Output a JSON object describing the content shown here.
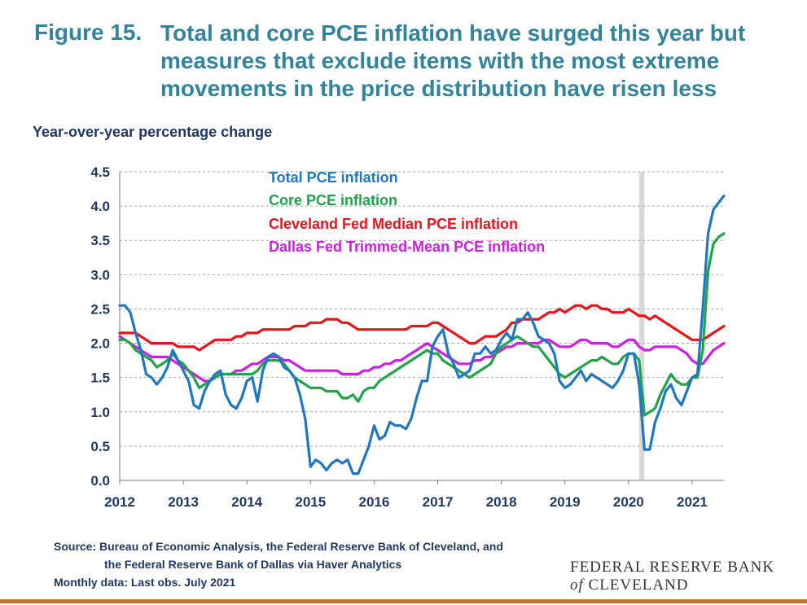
{
  "figure": {
    "number": "Figure 15.",
    "title_lines": [
      "Total and core PCE inflation have surged this year but",
      "measures that exclude items with the most extreme",
      "movements in the price distribution have risen less"
    ]
  },
  "axis_title": "Year-over-year percentage change",
  "source_lines": [
    "Source: Bureau of Economic Analysis, the Federal Reserve Bank of Cleveland, and",
    "the Federal Reserve Bank of Dallas via Haver Analytics",
    "Monthly data: Last obs. July 2021"
  ],
  "logo": {
    "line1": "FEDERAL RESERVE BANK",
    "of": "of",
    "line2": "CLEVELAND"
  },
  "colors": {
    "title": "#31849b",
    "axis_text": "#1f3864",
    "recession": "#d9d9d9",
    "rule": "#b8762f"
  },
  "chart_data": {
    "type": "line",
    "xlabel": "",
    "ylabel": "Year-over-year percentage change",
    "x_ticks": [
      "2012",
      "2013",
      "2014",
      "2015",
      "2016",
      "2017",
      "2018",
      "2019",
      "2020",
      "2021"
    ],
    "x_range": [
      "2012-01",
      "2021-07"
    ],
    "ylim": [
      0,
      4.5
    ],
    "y_ticks": [
      "0.0",
      "0.5",
      "1.0",
      "1.5",
      "2.0",
      "2.5",
      "3.0",
      "3.5",
      "4.0",
      "4.5"
    ],
    "grid": "horizontal dashed",
    "legend": "top, inside plot",
    "shaded_periods": [
      {
        "start": "2020-03",
        "end": "2020-04"
      }
    ],
    "series": [
      {
        "name": "Total PCE inflation",
        "color": "#1f77c4",
        "start": "2012-01",
        "values": [
          2.55,
          2.55,
          2.45,
          2.15,
          1.9,
          1.55,
          1.5,
          1.4,
          1.5,
          1.65,
          1.9,
          1.75,
          1.6,
          1.45,
          1.1,
          1.05,
          1.3,
          1.45,
          1.55,
          1.6,
          1.25,
          1.1,
          1.05,
          1.2,
          1.45,
          1.5,
          1.15,
          1.6,
          1.8,
          1.85,
          1.8,
          1.65,
          1.6,
          1.5,
          1.25,
          0.9,
          0.2,
          0.3,
          0.25,
          0.15,
          0.25,
          0.3,
          0.25,
          0.3,
          0.1,
          0.1,
          0.3,
          0.5,
          0.8,
          0.6,
          0.65,
          0.85,
          0.8,
          0.8,
          0.75,
          0.9,
          1.2,
          1.45,
          1.45,
          1.95,
          2.1,
          2.2,
          1.85,
          1.7,
          1.5,
          1.55,
          1.6,
          1.85,
          1.85,
          1.95,
          1.85,
          1.9,
          2.05,
          2.15,
          2.05,
          2.35,
          2.35,
          2.45,
          2.3,
          2.1,
          2.05,
          2.0,
          1.85,
          1.45,
          1.35,
          1.4,
          1.5,
          1.6,
          1.45,
          1.55,
          1.5,
          1.45,
          1.4,
          1.35,
          1.45,
          1.6,
          1.85,
          1.85,
          1.4,
          0.45,
          0.45,
          0.85,
          1.05,
          1.3,
          1.4,
          1.2,
          1.1,
          1.3,
          1.5,
          1.55,
          2.5,
          3.6,
          3.95,
          4.05,
          4.15
        ]
      },
      {
        "name": "Core PCE inflation",
        "color": "#21a34a",
        "start": "2012-01",
        "values": [
          2.05,
          2.05,
          2.0,
          1.9,
          1.85,
          1.8,
          1.75,
          1.65,
          1.7,
          1.75,
          1.85,
          1.75,
          1.7,
          1.6,
          1.5,
          1.35,
          1.4,
          1.45,
          1.5,
          1.55,
          1.55,
          1.55,
          1.55,
          1.55,
          1.55,
          1.55,
          1.6,
          1.7,
          1.75,
          1.75,
          1.75,
          1.7,
          1.6,
          1.5,
          1.45,
          1.4,
          1.35,
          1.35,
          1.35,
          1.3,
          1.3,
          1.3,
          1.2,
          1.2,
          1.25,
          1.15,
          1.3,
          1.35,
          1.35,
          1.45,
          1.5,
          1.55,
          1.6,
          1.65,
          1.7,
          1.75,
          1.8,
          1.85,
          1.9,
          1.85,
          1.85,
          1.75,
          1.7,
          1.65,
          1.6,
          1.55,
          1.5,
          1.55,
          1.6,
          1.65,
          1.7,
          1.85,
          1.95,
          2.0,
          2.05,
          2.1,
          2.05,
          2.0,
          1.95,
          1.95,
          1.85,
          1.75,
          1.65,
          1.55,
          1.5,
          1.55,
          1.6,
          1.65,
          1.7,
          1.75,
          1.75,
          1.8,
          1.75,
          1.7,
          1.7,
          1.8,
          1.85,
          1.85,
          1.75,
          0.95,
          1.0,
          1.05,
          1.25,
          1.4,
          1.55,
          1.45,
          1.4,
          1.4,
          1.5,
          1.5,
          1.9,
          3.05,
          3.45,
          3.55,
          3.6
        ]
      },
      {
        "name": "Cleveland Fed Median PCE inflation",
        "color": "#e8131b",
        "start": "2012-01",
        "values": [
          2.15,
          2.15,
          2.15,
          2.15,
          2.1,
          2.05,
          2.0,
          2.0,
          2.0,
          2.0,
          2.0,
          1.95,
          1.95,
          1.95,
          1.95,
          1.9,
          1.95,
          2.0,
          2.05,
          2.05,
          2.05,
          2.05,
          2.1,
          2.1,
          2.15,
          2.15,
          2.15,
          2.2,
          2.2,
          2.2,
          2.2,
          2.2,
          2.2,
          2.25,
          2.25,
          2.25,
          2.3,
          2.3,
          2.3,
          2.35,
          2.35,
          2.35,
          2.3,
          2.3,
          2.25,
          2.2,
          2.2,
          2.2,
          2.2,
          2.2,
          2.2,
          2.2,
          2.2,
          2.2,
          2.2,
          2.25,
          2.25,
          2.25,
          2.25,
          2.3,
          2.3,
          2.25,
          2.2,
          2.15,
          2.1,
          2.05,
          2.0,
          2.0,
          2.05,
          2.1,
          2.1,
          2.1,
          2.15,
          2.2,
          2.3,
          2.3,
          2.35,
          2.35,
          2.35,
          2.35,
          2.4,
          2.45,
          2.45,
          2.5,
          2.45,
          2.5,
          2.55,
          2.55,
          2.5,
          2.55,
          2.55,
          2.5,
          2.5,
          2.45,
          2.45,
          2.45,
          2.5,
          2.45,
          2.4,
          2.4,
          2.35,
          2.4,
          2.35,
          2.3,
          2.25,
          2.2,
          2.15,
          2.1,
          2.05,
          2.05,
          2.05,
          2.1,
          2.15,
          2.2,
          2.25
        ]
      },
      {
        "name": "Dallas Fed Trimmed-Mean PCE inflation",
        "color": "#cc1fe0",
        "start": "2012-01",
        "values": [
          2.1,
          2.05,
          2.0,
          1.95,
          1.9,
          1.85,
          1.8,
          1.8,
          1.8,
          1.8,
          1.75,
          1.7,
          1.65,
          1.6,
          1.55,
          1.5,
          1.45,
          1.45,
          1.5,
          1.55,
          1.55,
          1.55,
          1.6,
          1.6,
          1.65,
          1.7,
          1.7,
          1.75,
          1.8,
          1.8,
          1.8,
          1.75,
          1.75,
          1.7,
          1.65,
          1.6,
          1.6,
          1.6,
          1.6,
          1.6,
          1.6,
          1.6,
          1.55,
          1.55,
          1.55,
          1.55,
          1.6,
          1.6,
          1.65,
          1.65,
          1.7,
          1.7,
          1.75,
          1.75,
          1.8,
          1.85,
          1.9,
          1.95,
          2.0,
          1.95,
          1.9,
          1.85,
          1.8,
          1.75,
          1.7,
          1.7,
          1.7,
          1.75,
          1.75,
          1.8,
          1.8,
          1.85,
          1.9,
          1.95,
          1.95,
          2.0,
          2.0,
          2.0,
          2.0,
          2.0,
          2.05,
          2.05,
          2.0,
          1.95,
          1.95,
          1.95,
          2.0,
          2.05,
          2.05,
          2.0,
          2.0,
          2.0,
          2.0,
          1.95,
          1.95,
          2.0,
          2.05,
          2.05,
          1.95,
          1.9,
          1.9,
          1.95,
          1.95,
          1.95,
          1.95,
          1.95,
          1.9,
          1.85,
          1.75,
          1.7,
          1.7,
          1.8,
          1.9,
          1.95,
          2.0
        ]
      }
    ]
  }
}
